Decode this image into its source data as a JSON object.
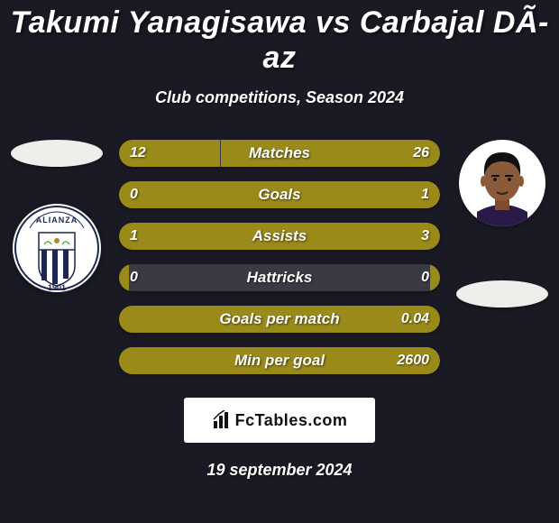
{
  "theme": {
    "background": "#1a1a24",
    "text": "#ffffff",
    "shadow": "#000000"
  },
  "header": {
    "title": "Takumi Yanagisawa vs Carbajal DÃ­az",
    "subtitle": "Club competitions, Season 2024"
  },
  "players": {
    "left": {
      "name": "Takumi Yanagisawa",
      "ellipse_color": "#eeeeea",
      "crest": {
        "bg": "#ffffff",
        "stripe": "#1c2652",
        "ring": "#1c2652",
        "top_text": "ALIANZA",
        "bottom_text": "LIMA",
        "year": "1901"
      }
    },
    "right": {
      "name": "Carbajal DÃ­az",
      "ellipse_color": "#eeeeea",
      "avatar": {
        "bg": "#ffffff",
        "skin": "#8a5a3a",
        "hair": "#111111",
        "shirt": "#2a1a4a"
      }
    }
  },
  "stats": {
    "bar_bg": "#3a3a44",
    "left_color": "#9a8a1a",
    "right_color": "#9a8a1a",
    "label_color": "#ffffff",
    "value_color": "#ffffff",
    "rows": [
      {
        "label": "Matches",
        "left": "12",
        "right": "26",
        "left_pct": 31.6,
        "right_pct": 68.4
      },
      {
        "label": "Goals",
        "left": "0",
        "right": "1",
        "left_pct": 3.0,
        "right_pct": 97.0
      },
      {
        "label": "Assists",
        "left": "1",
        "right": "3",
        "left_pct": 25.0,
        "right_pct": 75.0
      },
      {
        "label": "Hattricks",
        "left": "0",
        "right": "0",
        "left_pct": 3.0,
        "right_pct": 3.0
      },
      {
        "label": "Goals per match",
        "left": "",
        "right": "0.04",
        "left_pct": 3.0,
        "right_pct": 97.0
      },
      {
        "label": "Min per goal",
        "left": "",
        "right": "2600",
        "left_pct": 3.0,
        "right_pct": 97.0
      }
    ]
  },
  "footer": {
    "brand": "FcTables.com",
    "brand_bg": "#ffffff",
    "brand_text": "#111111",
    "date": "19 september 2024"
  }
}
